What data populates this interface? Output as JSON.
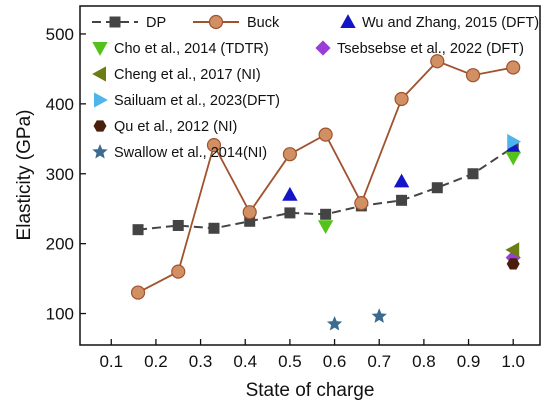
{
  "chart_data": {
    "type": "scatter",
    "xlabel": "State of charge",
    "ylabel": "Elasticity (GPa)",
    "xlim": [
      0.03,
      1.06
    ],
    "ylim": [
      55,
      540
    ],
    "xticks": [
      "0.1",
      "0.2",
      "0.3",
      "0.4",
      "0.5",
      "0.6",
      "0.7",
      "0.8",
      "0.9",
      "1.0"
    ],
    "yticks": [
      "100",
      "200",
      "300",
      "400",
      "500"
    ],
    "legend_position": "top",
    "series": [
      {
        "name": "DP",
        "kind": "line-marker",
        "marker": "square",
        "line": "dashed",
        "color": "#444444",
        "points": [
          [
            0.16,
            220
          ],
          [
            0.25,
            226
          ],
          [
            0.33,
            222
          ],
          [
            0.41,
            232
          ],
          [
            0.5,
            244
          ],
          [
            0.58,
            242
          ],
          [
            0.66,
            254
          ],
          [
            0.75,
            262
          ],
          [
            0.83,
            280
          ],
          [
            0.91,
            300
          ],
          [
            1.0,
            338
          ]
        ]
      },
      {
        "name": "Buck",
        "kind": "line-marker",
        "marker": "circle",
        "line": "solid",
        "color": "#a0522d",
        "fill": "#d18f64",
        "points": [
          [
            0.16,
            130
          ],
          [
            0.25,
            160
          ],
          [
            0.33,
            341
          ],
          [
            0.41,
            245
          ],
          [
            0.5,
            328
          ],
          [
            0.58,
            356
          ],
          [
            0.66,
            258
          ],
          [
            0.75,
            407
          ],
          [
            0.83,
            461
          ],
          [
            0.91,
            441
          ],
          [
            1.0,
            452
          ]
        ]
      },
      {
        "name": "Wu and Zhang, 2015 (DFT)",
        "kind": "scatter",
        "marker": "triangle-up",
        "color": "#1515c8",
        "points": [
          [
            0.5,
            270
          ],
          [
            0.75,
            289
          ],
          [
            1.0,
            338
          ]
        ]
      },
      {
        "name": "Cho et al., 2014 (TDTR)",
        "kind": "scatter",
        "marker": "triangle-down",
        "color": "#55c21c",
        "points": [
          [
            0.58,
            225
          ],
          [
            1.0,
            323
          ]
        ]
      },
      {
        "name": "Tsebsebse et al., 2022 (DFT)",
        "kind": "scatter",
        "marker": "diamond",
        "color": "#9a3cd8",
        "points": [
          [
            1.0,
            180
          ]
        ]
      },
      {
        "name": "Cheng et al., 2017 (NI)",
        "kind": "scatter",
        "marker": "triangle-left",
        "color": "#6b7d15",
        "points": [
          [
            1.0,
            191
          ]
        ]
      },
      {
        "name": "Sailuam et al., 2023(DFT)",
        "kind": "scatter",
        "marker": "triangle-right",
        "color": "#4fb4ea",
        "points": [
          [
            1.0,
            346
          ]
        ]
      },
      {
        "name": "Qu et al., 2012 (NI)",
        "kind": "scatter",
        "marker": "hexagon",
        "color": "#4a1e0a",
        "points": [
          [
            1.0,
            171
          ]
        ]
      },
      {
        "name": "Swallow et al., 2014(NI)",
        "kind": "scatter",
        "marker": "star",
        "color": "#3b6b8f",
        "points": [
          [
            0.6,
            85
          ],
          [
            0.7,
            96
          ]
        ]
      }
    ]
  }
}
